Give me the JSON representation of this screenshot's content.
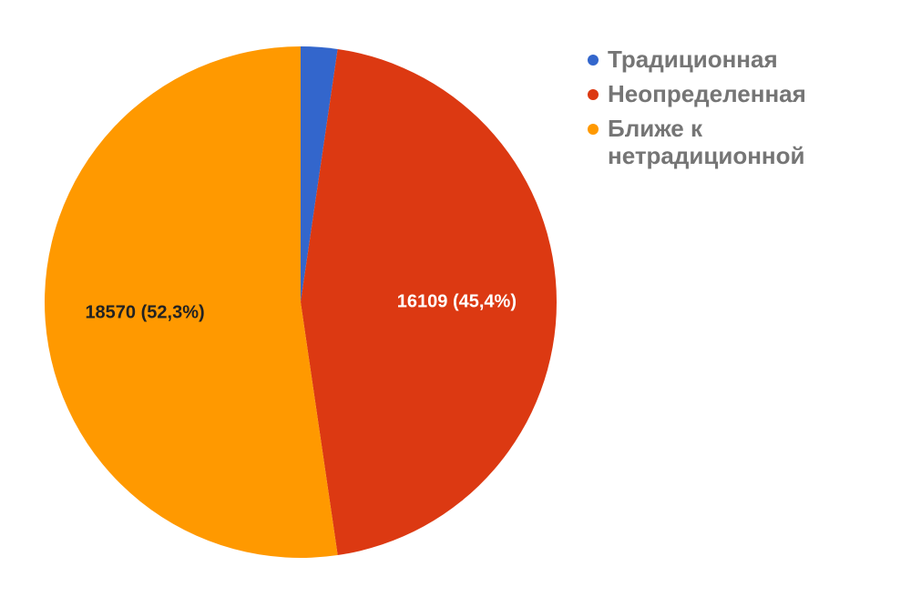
{
  "chart_data": {
    "type": "pie",
    "categories": [
      "Традиционная",
      "Неопределенная",
      "Ближе к нетрадиционной"
    ],
    "values": [
      820,
      16109,
      18570
    ],
    "value_labels": [
      null,
      "16109 (45,4%)",
      "18570 (52,3%)"
    ],
    "colors": [
      "#3366cc",
      "#dc3912",
      "#ff9900"
    ],
    "legend": "right"
  }
}
